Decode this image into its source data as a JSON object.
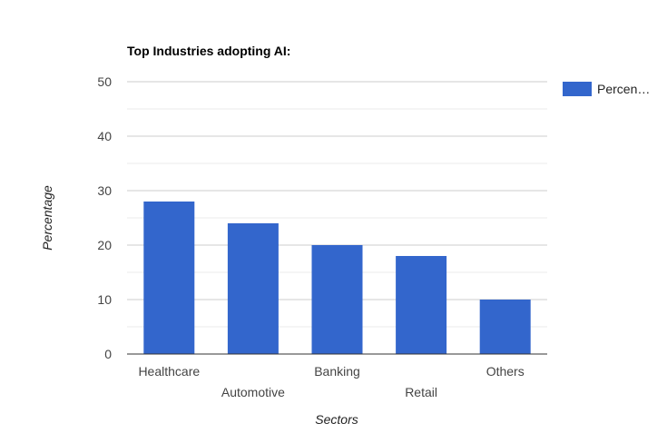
{
  "chart_data": {
    "type": "bar",
    "title": "Top Industries adopting AI:",
    "xlabel": "Sectors",
    "ylabel": "Percentage",
    "categories": [
      "Healthcare",
      "Automotive",
      "Banking",
      "Retail",
      "Others"
    ],
    "series": [
      {
        "name": "Percen…",
        "values": [
          28,
          24,
          20,
          18,
          10
        ],
        "color": "#3366cc"
      }
    ],
    "ylim": [
      0,
      50
    ],
    "yticks": [
      0,
      10,
      20,
      30,
      40,
      50
    ],
    "grid": true,
    "legend": "right"
  }
}
